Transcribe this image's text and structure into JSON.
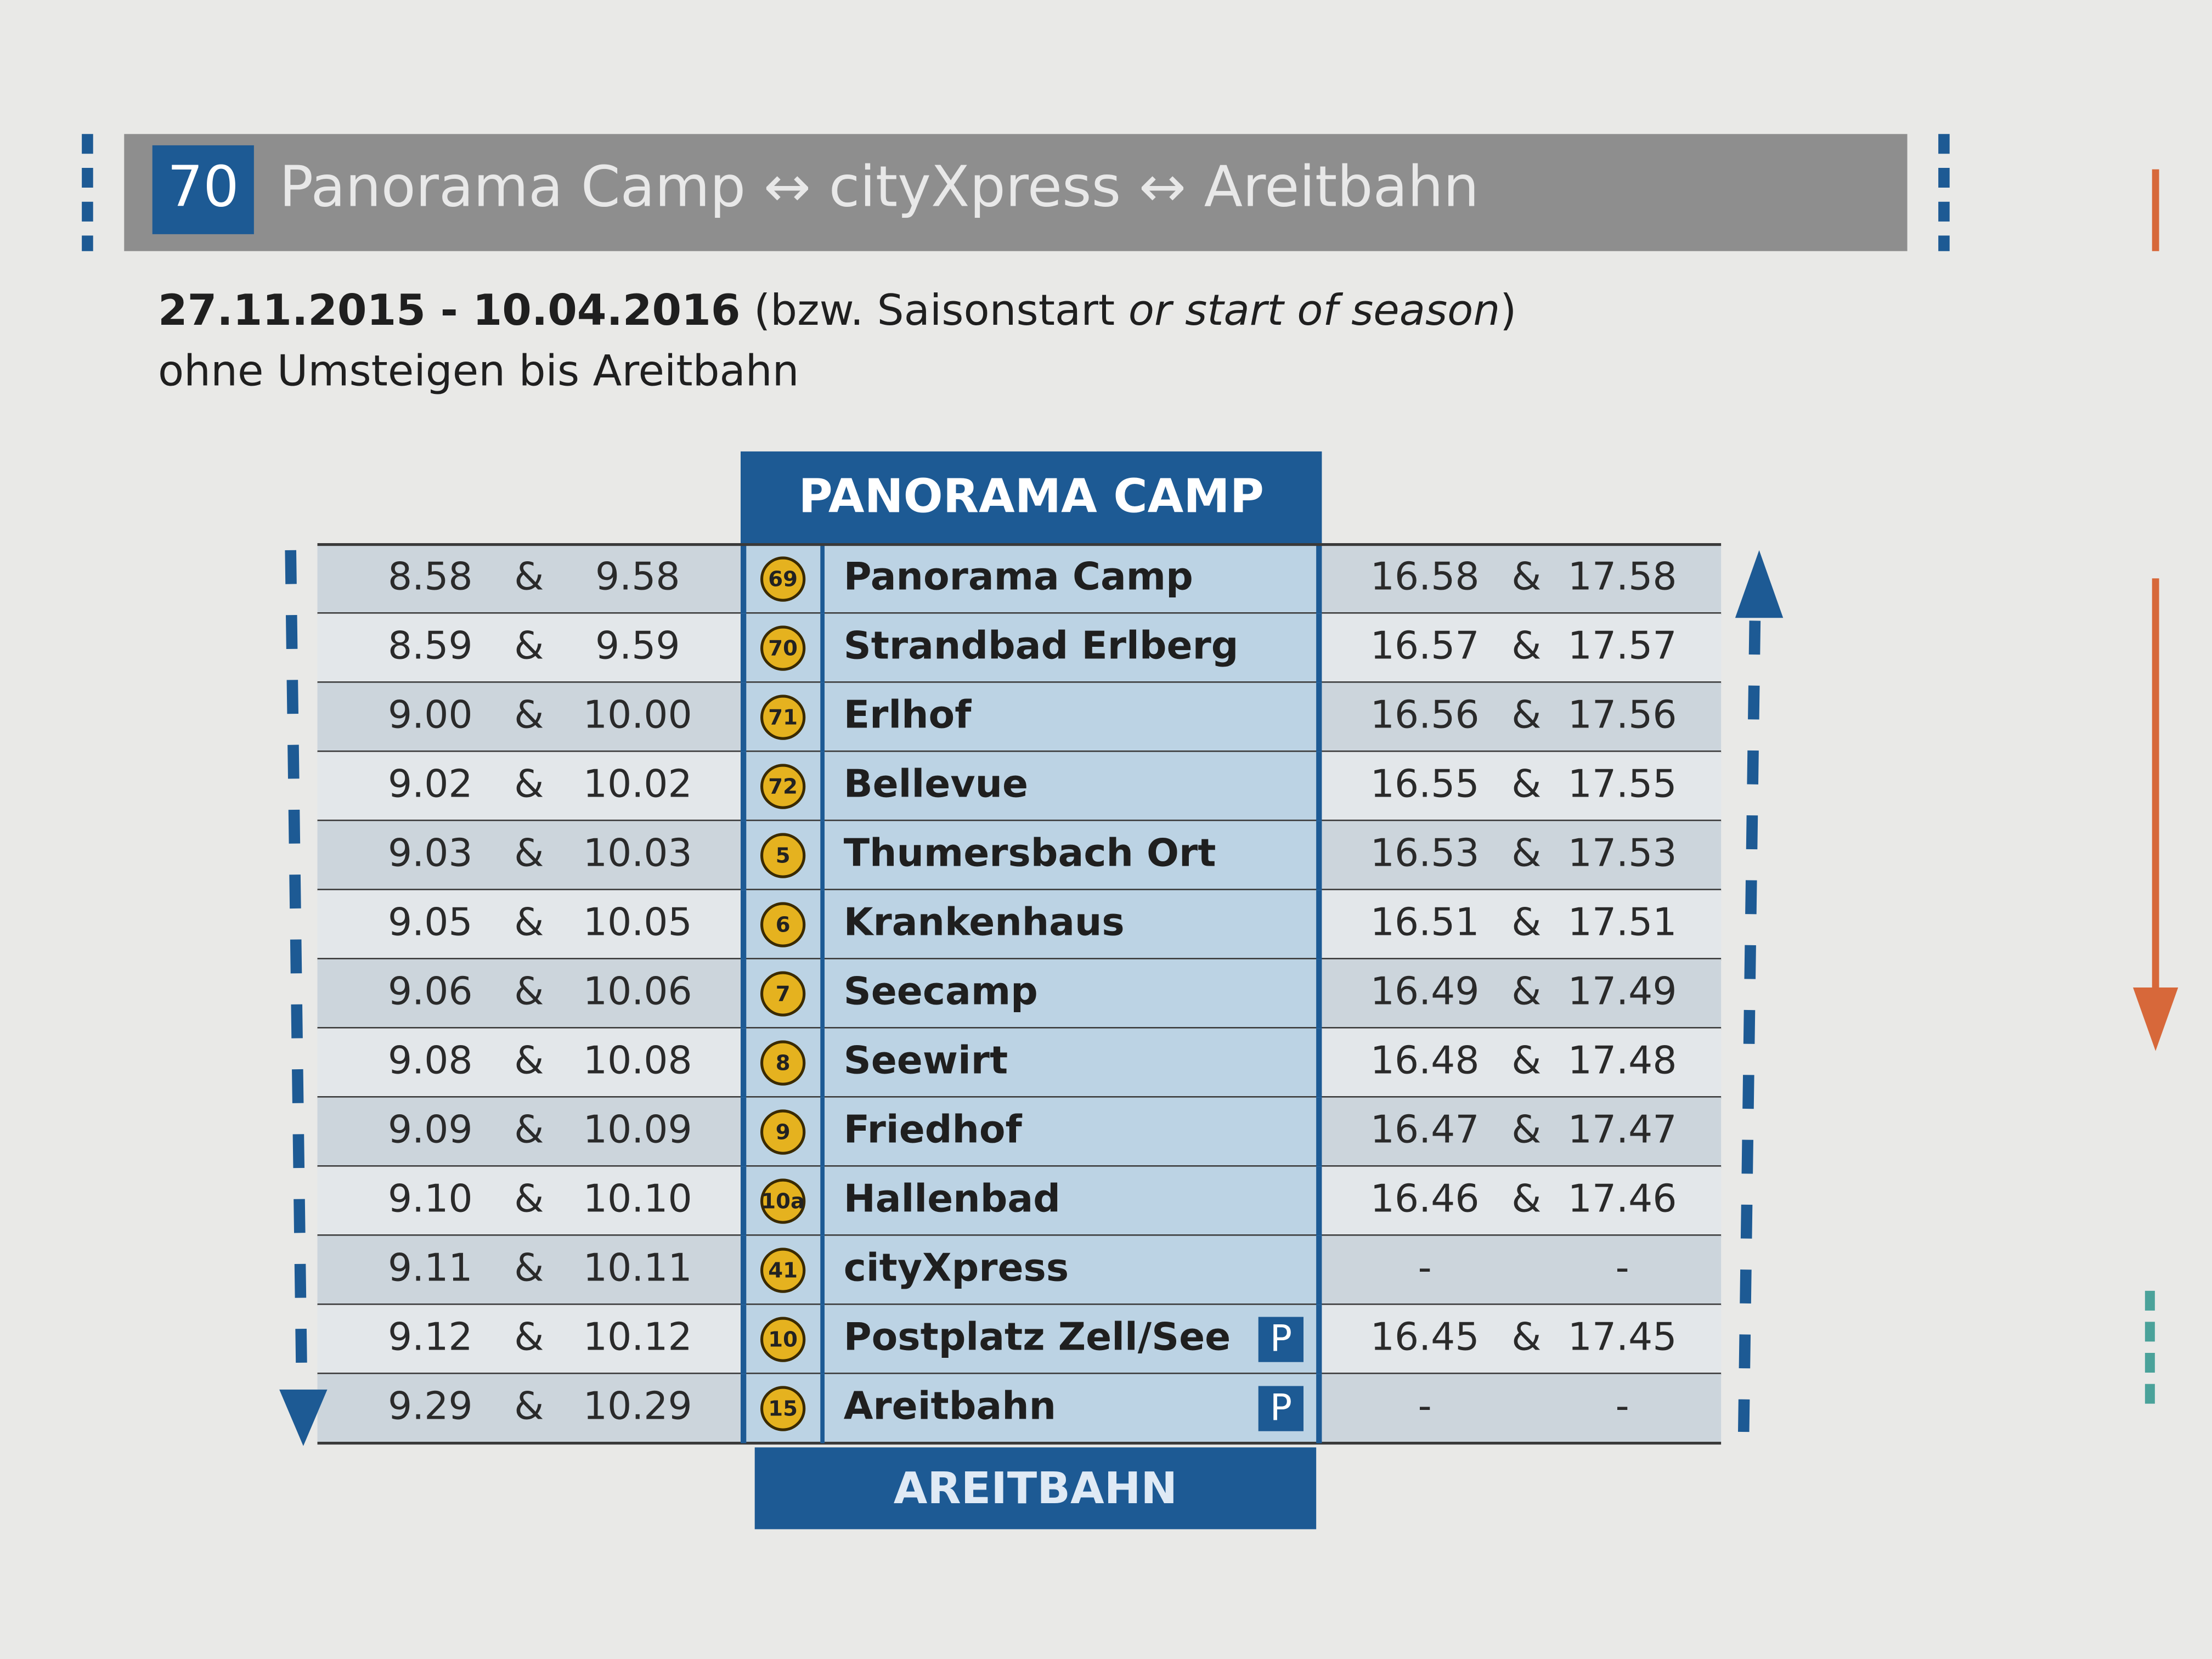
{
  "header": {
    "route_number": "70",
    "title": "Panorama Camp ↔ cityXpress ↔ Areitbahn"
  },
  "validity": {
    "dates": "27.11.2015 - 10.04.2016",
    "note_open": "(bzw. Saisonstart",
    "note_en": "or start of season",
    "note_close": ")"
  },
  "subtitle": "ohne Umsteigen bis Areitbahn",
  "table": {
    "start": "PANORAMA CAMP",
    "end": "AREITBAHN",
    "rows": [
      {
        "out1": "8.58",
        "amp_out": "&",
        "out2": "9.58",
        "stop_no": "69",
        "stop": "Panorama Camp",
        "ret1": "16.58",
        "amp_ret": "&",
        "ret2": "17.58"
      },
      {
        "out1": "8.59",
        "amp_out": "&",
        "out2": "9.59",
        "stop_no": "70",
        "stop": "Strandbad Erlberg",
        "ret1": "16.57",
        "amp_ret": "&",
        "ret2": "17.57"
      },
      {
        "out1": "9.00",
        "amp_out": "&",
        "out2": "10.00",
        "stop_no": "71",
        "stop": "Erlhof",
        "ret1": "16.56",
        "amp_ret": "&",
        "ret2": "17.56"
      },
      {
        "out1": "9.02",
        "amp_out": "&",
        "out2": "10.02",
        "stop_no": "72",
        "stop": "Bellevue",
        "ret1": "16.55",
        "amp_ret": "&",
        "ret2": "17.55"
      },
      {
        "out1": "9.03",
        "amp_out": "&",
        "out2": "10.03",
        "stop_no": "5",
        "stop": "Thumersbach Ort",
        "ret1": "16.53",
        "amp_ret": "&",
        "ret2": "17.53"
      },
      {
        "out1": "9.05",
        "amp_out": "&",
        "out2": "10.05",
        "stop_no": "6",
        "stop": "Krankenhaus",
        "ret1": "16.51",
        "amp_ret": "&",
        "ret2": "17.51"
      },
      {
        "out1": "9.06",
        "amp_out": "&",
        "out2": "10.06",
        "stop_no": "7",
        "stop": "Seecamp",
        "ret1": "16.49",
        "amp_ret": "&",
        "ret2": "17.49"
      },
      {
        "out1": "9.08",
        "amp_out": "&",
        "out2": "10.08",
        "stop_no": "8",
        "stop": "Seewirt",
        "ret1": "16.48",
        "amp_ret": "&",
        "ret2": "17.48"
      },
      {
        "out1": "9.09",
        "amp_out": "&",
        "out2": "10.09",
        "stop_no": "9",
        "stop": "Friedhof",
        "ret1": "16.47",
        "amp_ret": "&",
        "ret2": "17.47"
      },
      {
        "out1": "9.10",
        "amp_out": "&",
        "out2": "10.10",
        "stop_no": "10a",
        "stop": "Hallenbad",
        "ret1": "16.46",
        "amp_ret": "&",
        "ret2": "17.46"
      },
      {
        "out1": "9.11",
        "amp_out": "&",
        "out2": "10.11",
        "stop_no": "41",
        "stop": "cityXpress",
        "ret1": "-",
        "ret2": "-"
      },
      {
        "out1": "9.12",
        "amp_out": "&",
        "out2": "10.12",
        "stop_no": "10",
        "stop": "Postplatz Zell/See",
        "parking": "P",
        "ret1": "16.45",
        "amp_ret": "&",
        "ret2": "17.45"
      },
      {
        "out1": "9.29",
        "amp_out": "&",
        "out2": "10.29",
        "stop_no": "15",
        "stop": "Areitbahn",
        "parking": "P",
        "ret1": "-",
        "ret2": "-"
      }
    ]
  }
}
